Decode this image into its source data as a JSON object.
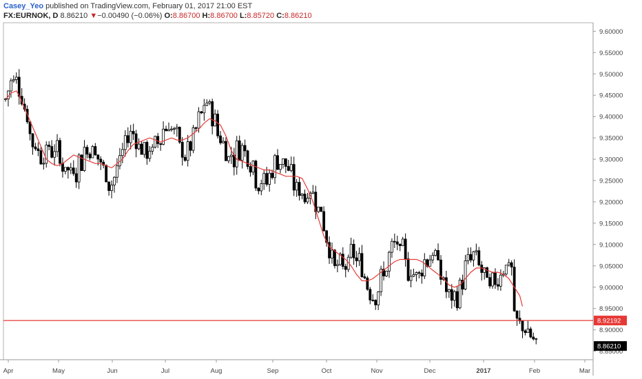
{
  "header": {
    "author": "Casey_Yeo",
    "published_text": "published on TradingView.com, February 01, 2017 21:00 EST",
    "symbol": "FX:EURNOK, D",
    "last": "8.86210",
    "change_arrow": "▼",
    "change": "−0.00490 (−0.06%)",
    "o_label": "O:",
    "o_value": "8.86700",
    "h_label": "H:",
    "h_value": "8.86700",
    "l_label": "L:",
    "l_value": "8.85720",
    "c_label": "C:",
    "c_value": "8.86210"
  },
  "colors": {
    "up_candle": "#ffffff",
    "down_candle": "#000000",
    "candle_outline": "#000000",
    "moving_average": "#e53935",
    "support_line": "#e53935",
    "last_price_tag": "#000000",
    "support_tag": "#e53935"
  },
  "chart_data": {
    "type": "candlestick",
    "symbol": "FX:EURNOK",
    "interval": "D",
    "y_axis": {
      "min": 8.83,
      "max": 9.62,
      "ticks": [
        "9.60000",
        "9.55000",
        "9.50000",
        "9.45000",
        "9.40000",
        "9.35000",
        "9.30000",
        "9.25000",
        "9.20000",
        "9.15000",
        "9.10000",
        "9.05000",
        "9.00000",
        "8.95000",
        "8.90000",
        "8.85000"
      ]
    },
    "x_axis": {
      "labels": [
        "Apr",
        "May",
        "Jun",
        "Jul",
        "Aug",
        "Sep",
        "Oct",
        "Nov",
        "Dec",
        "2017",
        "Feb",
        "Mar"
      ]
    },
    "horizontal_line": {
      "value": 8.92192,
      "label": "8.92192"
    },
    "last_price": {
      "value": 8.8621,
      "label": "8.86210"
    },
    "moving_average_path": [
      [
        0,
        9.44
      ],
      [
        2,
        9.455
      ],
      [
        4,
        9.46
      ],
      [
        5,
        9.45
      ],
      [
        7,
        9.42
      ],
      [
        9,
        9.39
      ],
      [
        11,
        9.36
      ],
      [
        13,
        9.33
      ],
      [
        15,
        9.3
      ],
      [
        17,
        9.29
      ],
      [
        19,
        9.285
      ],
      [
        21,
        9.29
      ],
      [
        23,
        9.3
      ],
      [
        25,
        9.31
      ],
      [
        27,
        9.305
      ],
      [
        29,
        9.3
      ],
      [
        31,
        9.295
      ],
      [
        33,
        9.29
      ],
      [
        35,
        9.29
      ],
      [
        37,
        9.285
      ],
      [
        39,
        9.28
      ],
      [
        41,
        9.29
      ],
      [
        43,
        9.3
      ],
      [
        45,
        9.32
      ],
      [
        47,
        9.335
      ],
      [
        49,
        9.34
      ],
      [
        51,
        9.345
      ],
      [
        53,
        9.35
      ],
      [
        55,
        9.345
      ],
      [
        57,
        9.34
      ],
      [
        59,
        9.345
      ],
      [
        61,
        9.35
      ],
      [
        63,
        9.345
      ],
      [
        65,
        9.345
      ],
      [
        67,
        9.35
      ],
      [
        69,
        9.36
      ],
      [
        71,
        9.37
      ],
      [
        73,
        9.385
      ],
      [
        75,
        9.395
      ],
      [
        77,
        9.39
      ],
      [
        79,
        9.38
      ],
      [
        81,
        9.355
      ],
      [
        83,
        9.32
      ],
      [
        85,
        9.3
      ],
      [
        87,
        9.295
      ],
      [
        89,
        9.29
      ],
      [
        91,
        9.285
      ],
      [
        93,
        9.28
      ],
      [
        95,
        9.275
      ],
      [
        97,
        9.275
      ],
      [
        99,
        9.27
      ],
      [
        101,
        9.265
      ],
      [
        103,
        9.26
      ],
      [
        105,
        9.26
      ],
      [
        107,
        9.26
      ],
      [
        109,
        9.255
      ],
      [
        111,
        9.23
      ],
      [
        113,
        9.2
      ],
      [
        115,
        9.16
      ],
      [
        117,
        9.12
      ],
      [
        119,
        9.095
      ],
      [
        121,
        9.085
      ],
      [
        123,
        9.075
      ],
      [
        125,
        9.065
      ],
      [
        127,
        9.05
      ],
      [
        129,
        9.03
      ],
      [
        131,
        9.015
      ],
      [
        133,
        9.015
      ],
      [
        135,
        9.02
      ],
      [
        137,
        9.03
      ],
      [
        139,
        9.04
      ],
      [
        141,
        9.05
      ],
      [
        143,
        9.06
      ],
      [
        145,
        9.065
      ],
      [
        147,
        9.065
      ],
      [
        149,
        9.065
      ],
      [
        151,
        9.065
      ],
      [
        153,
        9.06
      ],
      [
        155,
        9.05
      ],
      [
        157,
        9.04
      ],
      [
        159,
        9.03
      ],
      [
        161,
        9.02
      ],
      [
        163,
        9.005
      ],
      [
        165,
        9.0
      ],
      [
        167,
        9.005
      ],
      [
        169,
        9.02
      ],
      [
        171,
        9.035
      ],
      [
        173,
        9.045
      ],
      [
        175,
        9.045
      ],
      [
        177,
        9.04
      ],
      [
        179,
        9.035
      ],
      [
        181,
        9.035
      ],
      [
        183,
        9.03
      ],
      [
        185,
        9.02
      ],
      [
        187,
        9.0
      ],
      [
        189,
        8.98
      ],
      [
        190,
        8.955
      ]
    ]
  }
}
